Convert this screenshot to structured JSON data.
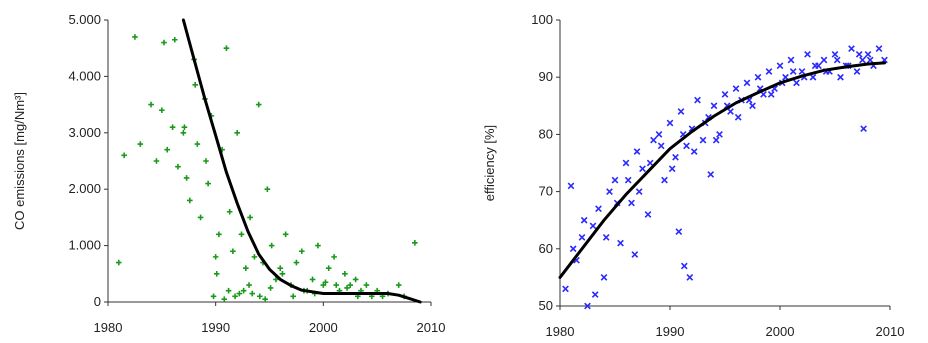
{
  "chart_data": [
    {
      "type": "scatter",
      "ylabel": "CO emissions [mg/Nm³]",
      "xlabel": "",
      "xlim": [
        1980,
        2010
      ],
      "ylim": [
        0,
        5000
      ],
      "xticks": [
        1980,
        1990,
        2000,
        2010
      ],
      "xtick_labels": [
        "1980",
        "1990",
        "2000",
        "2010"
      ],
      "yticks": [
        0,
        1000,
        2000,
        3000,
        4000,
        5000
      ],
      "ytick_labels": [
        "0",
        "1.000",
        "2.000",
        "3.000",
        "4.000",
        "5.000"
      ],
      "grid": false,
      "marker_color": "#1a9a1a",
      "marker": "plus",
      "fit_color": "#000000",
      "fit_curve": {
        "x": [
          1987,
          1988,
          1989,
          1990,
          1991,
          1992,
          1993,
          1994,
          1995,
          1996,
          1997,
          1998,
          2000,
          2002,
          2004,
          2006,
          2007,
          2008,
          2009
        ],
        "y": [
          5000,
          4300,
          3600,
          2950,
          2300,
          1750,
          1250,
          850,
          580,
          400,
          290,
          210,
          150,
          150,
          150,
          150,
          120,
          60,
          0
        ]
      },
      "points": {
        "x": [
          1981,
          1981.5,
          1983,
          1984,
          1984.5,
          1985,
          1985.5,
          1986,
          1986.5,
          1987,
          1987.3,
          1987.6,
          1988,
          1988.3,
          1988.6,
          1989,
          1989.3,
          1989.6,
          1990,
          1990.3,
          1990.6,
          1991,
          1991.3,
          1991.6,
          1992,
          1992.4,
          1992.8,
          1993.2,
          1993.6,
          1994,
          1994.4,
          1994.8,
          1995.2,
          1995.6,
          1996,
          1996.5,
          1997,
          1997.5,
          1998,
          1998.5,
          1999,
          1999.5,
          2000,
          2000.5,
          2001,
          2001.5,
          2002,
          2002.5,
          2003,
          2003.5,
          2004,
          2004.5,
          2005,
          2005.5,
          2006,
          2007,
          2007.5,
          2008.5,
          1982.5,
          1985.2,
          1986.2,
          1987.1,
          1988.1,
          1989.1,
          1990.1,
          1991.2,
          1992.2,
          1993.1,
          1994.1,
          1995.1,
          1996.2,
          1997.2,
          1998.2,
          1999.2,
          2000.2,
          2001.2,
          2002.2,
          2003.2,
          1989.8,
          1990.8,
          1991.8,
          1992.6,
          1993.4,
          1994.6
        ],
        "y": [
          700,
          2600,
          2800,
          3500,
          2500,
          3400,
          2700,
          3100,
          2400,
          3000,
          2200,
          1800,
          4300,
          2800,
          1500,
          3600,
          2100,
          3300,
          800,
          1200,
          2700,
          4500,
          1600,
          900,
          3000,
          1200,
          600,
          1500,
          800,
          3500,
          700,
          2000,
          1000,
          400,
          600,
          1200,
          300,
          700,
          900,
          200,
          400,
          1000,
          300,
          600,
          800,
          200,
          500,
          300,
          400,
          200,
          300,
          100,
          200,
          100,
          150,
          300,
          100,
          1050,
          4700,
          4600,
          4650,
          3100,
          3850,
          2500,
          500,
          200,
          150,
          300,
          100,
          250,
          500,
          100,
          200,
          150,
          350,
          300,
          250,
          100,
          100,
          50,
          100,
          200,
          150,
          50
        ]
      }
    },
    {
      "type": "scatter",
      "ylabel": "efficiency [%]",
      "xlabel": "",
      "xlim": [
        1980,
        2010
      ],
      "ylim": [
        50,
        100
      ],
      "xticks": [
        1980,
        1990,
        2000,
        2010
      ],
      "xtick_labels": [
        "1980",
        "1990",
        "2000",
        "2010"
      ],
      "yticks": [
        50,
        60,
        70,
        80,
        90,
        100
      ],
      "ytick_labels": [
        "50",
        "60",
        "70",
        "80",
        "90",
        "100"
      ],
      "grid": false,
      "marker_color": "#2a2aff",
      "marker": "x",
      "fit_color": "#000000",
      "fit_curve": {
        "x": [
          1980,
          1982,
          1984,
          1986,
          1988,
          1990,
          1992,
          1994,
          1996,
          1998,
          2000,
          2002,
          2004,
          2006,
          2008,
          2009.5
        ],
        "y": [
          55,
          60,
          65,
          69.5,
          73.5,
          77.5,
          80.5,
          83.2,
          85.5,
          87.3,
          89,
          90.2,
          91.2,
          91.8,
          92.3,
          92.5
        ]
      },
      "points": {
        "x": [
          1980.5,
          1981,
          1981.5,
          1982,
          1982.5,
          1983,
          1983.5,
          1984,
          1984.5,
          1985,
          1985.5,
          1986,
          1986.5,
          1987,
          1987.5,
          1988,
          1988.5,
          1989,
          1989.5,
          1990,
          1990.5,
          1991,
          1991.5,
          1992,
          1992.5,
          1993,
          1993.5,
          1994,
          1994.5,
          1995,
          1995.5,
          1996,
          1996.5,
          1997,
          1997.5,
          1998,
          1998.5,
          1999,
          1999.5,
          2000,
          2000.5,
          2001,
          2001.5,
          2002,
          2002.5,
          2003,
          2003.5,
          2004,
          2004.5,
          2005,
          2005.5,
          2006,
          2006.5,
          2007,
          2007.5,
          2008,
          2008.5,
          2009,
          2009.5,
          1981.2,
          1982.2,
          1983.2,
          1984.2,
          1985.2,
          1986.2,
          1987.2,
          1988.2,
          1989.2,
          1990.2,
          1991.2,
          1992.2,
          1993.2,
          1994.2,
          1995.2,
          1996.2,
          1997.2,
          1998.2,
          1999.2,
          2000.2,
          2001.2,
          2002.2,
          2003.2,
          2004.2,
          2005.2,
          2006.2,
          2007.2,
          2008.2,
          1991.3,
          1991.8,
          1990.8,
          1993.7,
          1986.8,
          2007.6
        ],
        "y": [
          53,
          71,
          58,
          62,
          50,
          64,
          67,
          55,
          70,
          72,
          61,
          75,
          68,
          77,
          74,
          66,
          79,
          80,
          72,
          82,
          76,
          84,
          78,
          81,
          86,
          79,
          83,
          85,
          80,
          87,
          84,
          88,
          86,
          89,
          85,
          90,
          87,
          91,
          88,
          92,
          90,
          93,
          89,
          91,
          94,
          90,
          92,
          93,
          91,
          94,
          90,
          92,
          95,
          91,
          93,
          94,
          92,
          95,
          93,
          60,
          65,
          52,
          62,
          68,
          72,
          70,
          75,
          78,
          74,
          80,
          77,
          82,
          79,
          85,
          83,
          86,
          88,
          87,
          89,
          91,
          90,
          92,
          91,
          93,
          92,
          94,
          93,
          57,
          55,
          63,
          73,
          59,
          81
        ]
      }
    }
  ]
}
